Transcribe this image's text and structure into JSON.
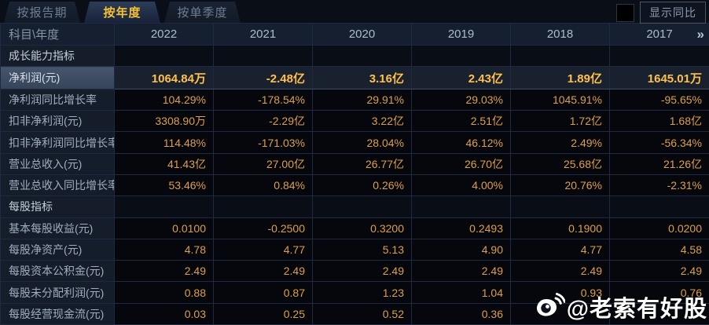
{
  "tabs": [
    {
      "name": "tab-report-period",
      "label": "按报告期",
      "active": false
    },
    {
      "name": "tab-annual",
      "label": "按年度",
      "active": true
    },
    {
      "name": "tab-quarterly",
      "label": "按单季度",
      "active": false
    }
  ],
  "controls": {
    "show_yoy_label": "显示同比",
    "checkbox_checked": false
  },
  "table": {
    "corner_header": "科目\\年度",
    "year_headers": [
      "2022",
      "2021",
      "2020",
      "2019",
      "2018",
      "2017"
    ],
    "more_years_icon": "»",
    "rows": [
      {
        "type": "section",
        "label": "成长能力指标",
        "values": [
          "",
          "",
          "",
          "",
          "",
          ""
        ]
      },
      {
        "type": "data",
        "highlight": true,
        "label": "净利润(元)",
        "values": [
          "1064.84万",
          "-2.48亿",
          "3.16亿",
          "2.43亿",
          "1.89亿",
          "1645.01万"
        ]
      },
      {
        "type": "data",
        "highlight": false,
        "label": "净利润同比增长率",
        "values": [
          "104.29%",
          "-178.54%",
          "29.91%",
          "29.03%",
          "1045.91%",
          "-95.65%"
        ]
      },
      {
        "type": "data",
        "highlight": false,
        "label": "扣非净利润(元)",
        "values": [
          "3308.90万",
          "-2.29亿",
          "3.22亿",
          "2.51亿",
          "1.72亿",
          "1.68亿"
        ]
      },
      {
        "type": "data",
        "highlight": false,
        "label": "扣非净利润同比增长率",
        "values": [
          "114.48%",
          "-171.03%",
          "28.04%",
          "46.12%",
          "2.49%",
          "-56.34%"
        ]
      },
      {
        "type": "data",
        "highlight": false,
        "label": "营业总收入(元)",
        "values": [
          "41.43亿",
          "27.00亿",
          "26.77亿",
          "26.70亿",
          "25.68亿",
          "21.26亿"
        ]
      },
      {
        "type": "data",
        "highlight": false,
        "label": "营业总收入同比增长率",
        "values": [
          "53.46%",
          "0.84%",
          "0.26%",
          "4.00%",
          "20.76%",
          "-2.31%"
        ]
      },
      {
        "type": "section",
        "label": "每股指标",
        "values": [
          "",
          "",
          "",
          "",
          "",
          ""
        ]
      },
      {
        "type": "data",
        "highlight": false,
        "label": "基本每股收益(元)",
        "values": [
          "0.0100",
          "-0.2500",
          "0.3200",
          "0.2493",
          "0.1900",
          "0.0200"
        ]
      },
      {
        "type": "data",
        "highlight": false,
        "label": "每股净资产(元)",
        "values": [
          "4.78",
          "4.77",
          "5.13",
          "4.90",
          "4.77",
          "4.58"
        ]
      },
      {
        "type": "data",
        "highlight": false,
        "label": "每股资本公积金(元)",
        "values": [
          "2.49",
          "2.49",
          "2.49",
          "2.49",
          "2.49",
          "2.49"
        ]
      },
      {
        "type": "data",
        "highlight": false,
        "label": "每股未分配利润(元)",
        "values": [
          "0.88",
          "0.87",
          "1.23",
          "1.04",
          "0.93",
          "0.76"
        ]
      },
      {
        "type": "data",
        "highlight": false,
        "label": "每股经营现金流(元)",
        "values": [
          "0.03",
          "0.25",
          "0.52",
          "0.36",
          "",
          ""
        ]
      }
    ]
  },
  "watermark": {
    "icon": "weibo-logo-icon",
    "text": "@老索有好股"
  },
  "colors": {
    "accent_gold": "#dda044",
    "highlight_gold": "#ffc14a",
    "active_tab_text": "#f5c230",
    "label_text": "#9fadbf",
    "header_text": "#aebbca",
    "value_cell_bg": "#05070c",
    "label_cell_bg": "#151d2b",
    "highlight_label_bg": "#3c4a5f",
    "highlight_value_bg": "#19212e"
  }
}
